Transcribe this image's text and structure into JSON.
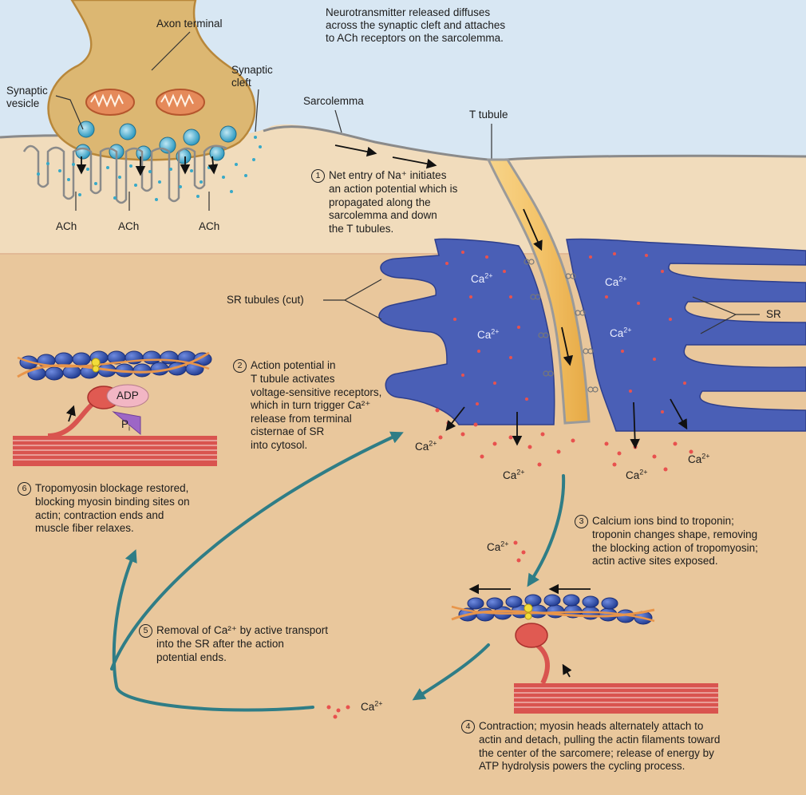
{
  "labels": {
    "axon_terminal": "Axon terminal",
    "synaptic_vesicle": "Synaptic\nvesicle",
    "synaptic_cleft": "Synaptic\ncleft",
    "sarcolemma": "Sarcolemma",
    "t_tubule": "T tubule",
    "ach": "ACh",
    "sr_tubules": "SR tubules (cut)",
    "sr": "SR",
    "ca": "Ca",
    "ca_charge": "2+",
    "adp": "ADP",
    "pi": "P",
    "pi_sub": "i",
    "top_note": "Neurotransmitter released diffuses\nacross the synaptic cleft and attaches\nto ACh receptors on the sarcolemma."
  },
  "steps": [
    {
      "num": "1",
      "lines": [
        "Net entry of Na⁺ initiates",
        "an action potential which is",
        "propagated along the",
        "sarcolemma and down",
        "the T tubules."
      ]
    },
    {
      "num": "2",
      "lines": [
        "Action potential in",
        "T tubule activates",
        "voltage-sensitive receptors,",
        "which in turn trigger Ca²⁺",
        "release from terminal",
        "cisternae of SR",
        "into cytosol."
      ]
    },
    {
      "num": "3",
      "lines": [
        "Calcium ions bind to troponin;",
        "troponin changes shape, removing",
        "the blocking action of tropomyosin;",
        "actin active sites exposed."
      ]
    },
    {
      "num": "4",
      "lines": [
        "Contraction; myosin heads alternately attach to",
        "actin and detach, pulling the actin filaments toward",
        "the center of the sarcomere; release of energy by",
        "ATP hydrolysis powers the cycling process."
      ]
    },
    {
      "num": "5",
      "lines": [
        "Removal of Ca²⁺ by active transport",
        "into the SR after the action",
        "potential ends."
      ]
    },
    {
      "num": "6",
      "lines": [
        "Tropomyosin blockage restored,",
        "blocking myosin binding sites on",
        "actin; contraction ends and",
        "muscle fiber relaxes."
      ]
    }
  ],
  "colors": {
    "background_top": "#d8e7f3",
    "cytosol": "#e9c79c",
    "sarcolemma_band": "#f1dcbc",
    "axon": "#dcb772",
    "sr_blue": "#4a5fb6",
    "ttubule": "#f4c46a",
    "calcium": "#e8514e",
    "ach": "#37a9c8",
    "cycle_arrow": "#2f7d86",
    "myosin": "#e05a52",
    "thick_filament": "#d9544f"
  }
}
